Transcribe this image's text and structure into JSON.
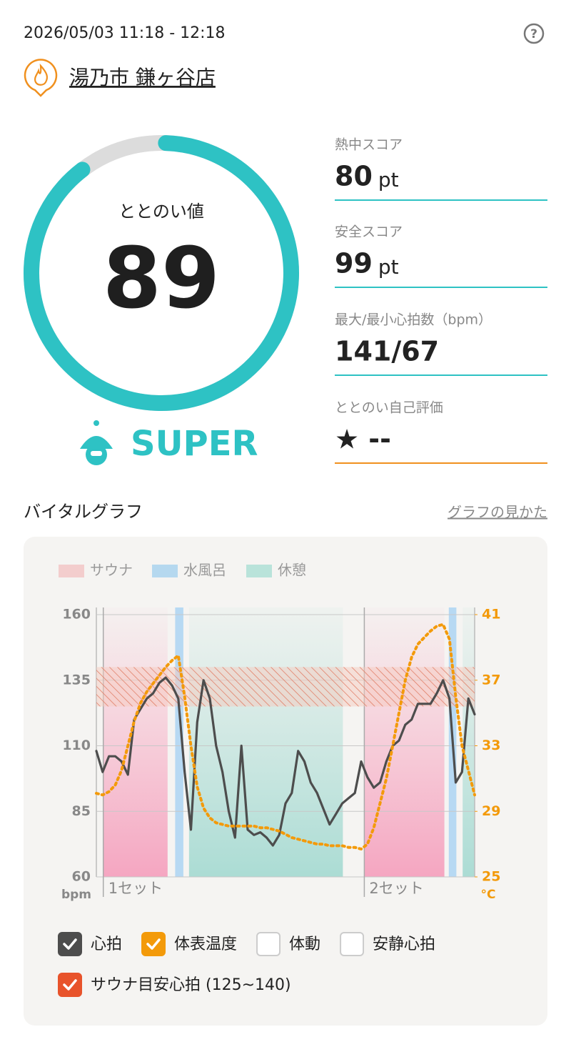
{
  "header": {
    "datetime": "2026/05/03 11:18 - 12:18",
    "help": "?",
    "store": "湯乃市 鎌ヶ谷店"
  },
  "score": {
    "label": "ととのい値",
    "value": 89,
    "rank": "SUPER"
  },
  "metrics": [
    {
      "label": "熱中スコア",
      "value": 80,
      "unit": "pt"
    },
    {
      "label": "安全スコア",
      "value": 99,
      "unit": "pt"
    },
    {
      "label": "最大/最小心拍数（bpm）",
      "value": "141/67"
    },
    {
      "label": "ととのい自己評価",
      "value": "★ --"
    }
  ],
  "section": {
    "title": "バイタルグラフ",
    "link": "グラフの見かた"
  },
  "chart_data": {
    "type": "line",
    "xlim": [
      0,
      60
    ],
    "phases": [
      {
        "name": "サウナ",
        "color": "#f3cdcd",
        "spans": [
          [
            1.1,
            11.3
          ],
          [
            42.5,
            55.2
          ]
        ]
      },
      {
        "name": "水風呂",
        "color": "#b5d8ef",
        "spans": [
          [
            12.5,
            13.8
          ],
          [
            55.9,
            57.1
          ]
        ]
      },
      {
        "name": "休憩",
        "color": "#b9e3da",
        "spans": [
          [
            14.7,
            39.1
          ],
          [
            58.1,
            60
          ]
        ]
      }
    ],
    "sets": [
      {
        "label": "1セット",
        "at": 1.1
      },
      {
        "label": "2セット",
        "at": 42.5
      }
    ],
    "ylim": [
      60,
      160
    ],
    "yticks": [
      60,
      85,
      110,
      135,
      160
    ],
    "ylabel": "bpm",
    "y2lim": [
      25,
      41
    ],
    "y2ticks": [
      25,
      29,
      33,
      37,
      41
    ],
    "y2label": "°C",
    "series": [
      {
        "name": "心拍",
        "color": "#4d4d4d",
        "checked": true,
        "values": [
          108,
          100,
          106,
          106,
          104,
          99,
          120,
          124,
          128,
          130,
          134,
          136,
          133,
          128,
          100,
          78,
          119,
          135,
          128,
          110,
          100,
          85,
          75,
          110,
          78,
          76,
          77,
          75,
          72,
          76,
          88,
          92,
          108,
          104,
          96,
          92,
          86,
          80,
          84,
          88,
          90,
          92,
          104,
          98,
          94,
          96,
          104,
          110,
          112,
          118,
          120,
          126,
          126,
          126,
          130,
          135,
          128,
          96,
          100,
          128,
          122
        ]
      },
      {
        "name": "体表温度",
        "color": "#f39a0a",
        "checked": true,
        "axis": "y2",
        "values": [
          30.1,
          30,
          30.2,
          30.6,
          31.5,
          33,
          34.5,
          35.6,
          36.3,
          36.8,
          37.3,
          37.8,
          38.2,
          38.5,
          36,
          33,
          30.5,
          29.2,
          28.6,
          28.3,
          28.2,
          28.1,
          28.1,
          28.1,
          28.1,
          28.1,
          28,
          28,
          27.9,
          27.8,
          27.6,
          27.4,
          27.3,
          27.2,
          27.1,
          27,
          27,
          26.9,
          26.9,
          26.9,
          26.8,
          26.8,
          26.7,
          27,
          28,
          29.5,
          31,
          33,
          35,
          37,
          38.4,
          39.2,
          39.6,
          40,
          40.3,
          40.4,
          39.5,
          36,
          33,
          31.5,
          30
        ]
      }
    ],
    "toggles": [
      {
        "label": "体動",
        "checked": false
      },
      {
        "label": "安静心拍",
        "checked": false
      }
    ],
    "target_zone": {
      "label": "サウナ目安心拍 (125~140)",
      "range": [
        125,
        140
      ],
      "color": "#e8532b",
      "checked": true
    }
  }
}
